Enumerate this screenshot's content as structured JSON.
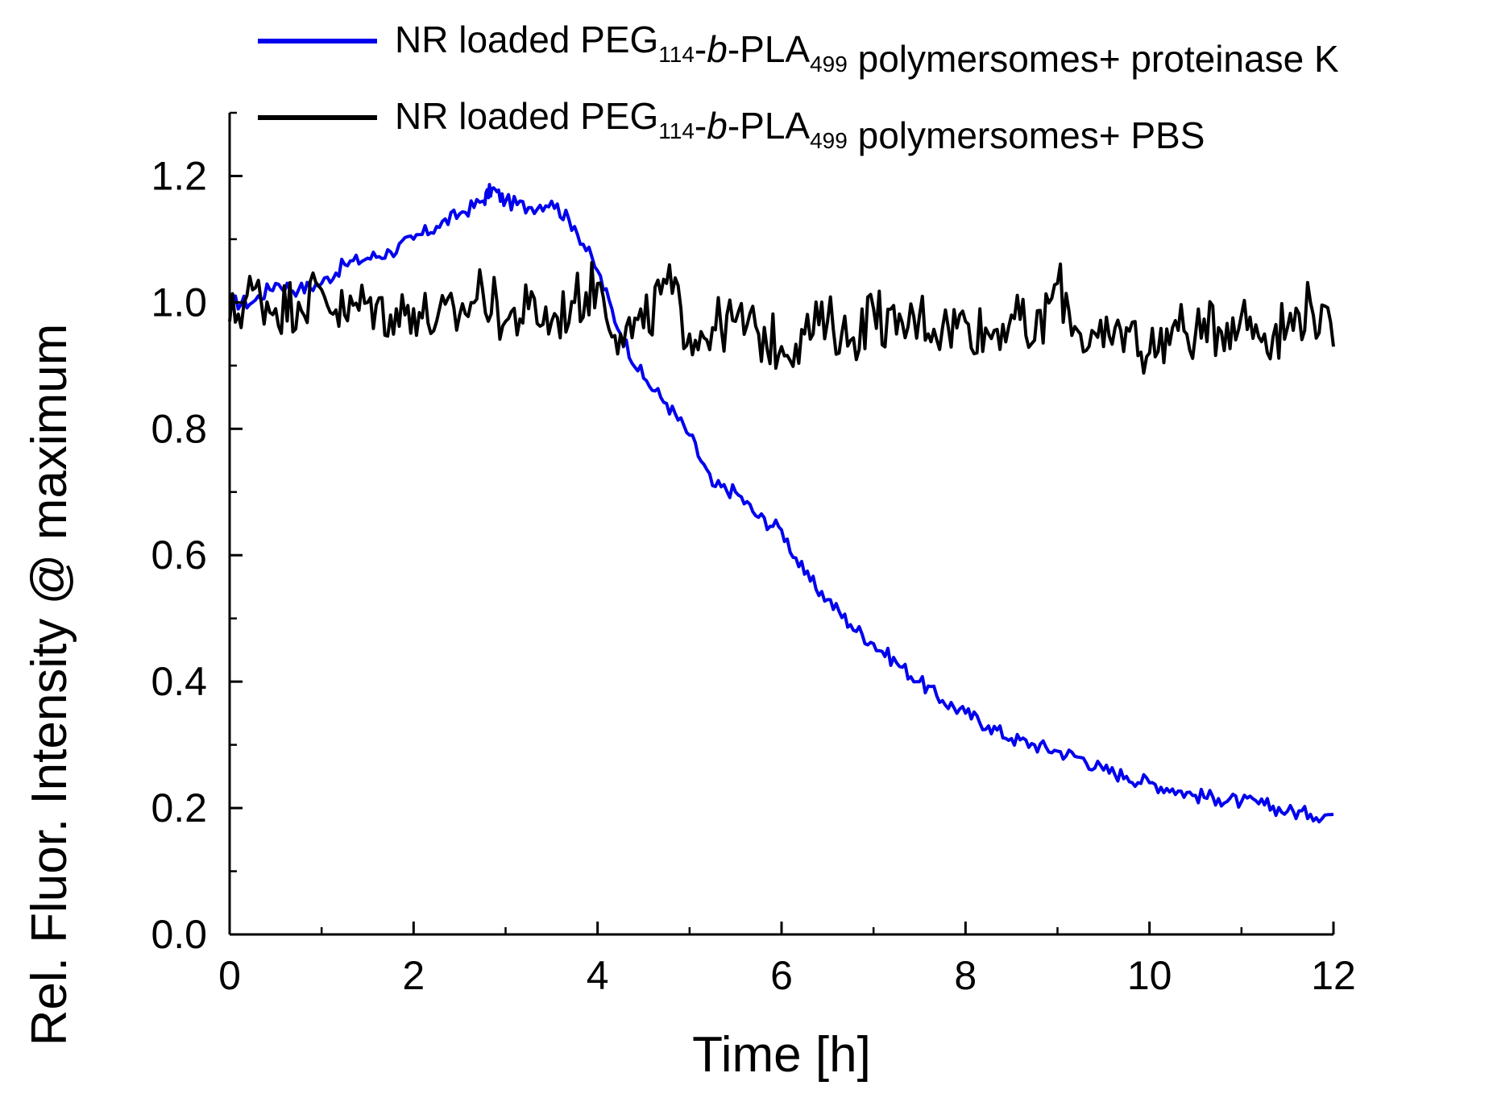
{
  "chart_data": {
    "type": "line",
    "xlabel": "Time [h]",
    "ylabel": "Rel. Fluor. Intensity @ maximum",
    "xlim": [
      0,
      12
    ],
    "ylim": [
      0,
      1.3
    ],
    "x_ticks": [
      0,
      2,
      4,
      6,
      8,
      10,
      12
    ],
    "x_tick_labels": [
      "0",
      "2",
      "4",
      "6",
      "8",
      "10",
      "12"
    ],
    "y_ticks": [
      0.0,
      0.2,
      0.4,
      0.6,
      0.8,
      1.0,
      1.2
    ],
    "y_tick_labels": [
      "0.0",
      "0.2",
      "0.4",
      "0.6",
      "0.8",
      "1.0",
      "1.2"
    ],
    "legend_position": "top",
    "series": [
      {
        "name": "NR loaded PEG114-b-PLA499 polymersomes+ proteinase K",
        "legend_parts": [
          "NR loaded PEG",
          "114",
          "-",
          "b",
          "-PLA",
          "499",
          " polymersomes+ proteinase K"
        ],
        "color": "#0000ee",
        "x": [
          0,
          0.25,
          0.5,
          0.75,
          1.0,
          1.25,
          1.5,
          1.75,
          2.0,
          2.25,
          2.5,
          2.75,
          2.85,
          3.0,
          3.25,
          3.5,
          3.75,
          4.0,
          4.25,
          4.5,
          4.75,
          5.0,
          5.25,
          5.5,
          5.75,
          6.0,
          6.25,
          6.5,
          6.75,
          7.0,
          7.25,
          7.5,
          7.75,
          8.0,
          8.25,
          8.5,
          8.75,
          9.0,
          9.25,
          9.5,
          9.75,
          10.0,
          10.25,
          10.5,
          10.75,
          11.0,
          11.25,
          11.5,
          11.75,
          12.0
        ],
        "y": [
          1.0,
          1.0,
          1.03,
          1.02,
          1.03,
          1.06,
          1.07,
          1.08,
          1.1,
          1.12,
          1.14,
          1.16,
          1.18,
          1.16,
          1.15,
          1.16,
          1.12,
          1.05,
          0.95,
          0.88,
          0.84,
          0.79,
          0.71,
          0.7,
          0.66,
          0.64,
          0.57,
          0.53,
          0.49,
          0.46,
          0.43,
          0.4,
          0.37,
          0.35,
          0.33,
          0.31,
          0.3,
          0.29,
          0.28,
          0.26,
          0.25,
          0.24,
          0.23,
          0.22,
          0.215,
          0.21,
          0.205,
          0.195,
          0.19,
          0.19
        ]
      },
      {
        "name": "NR loaded PEG114-b-PLA499 polymersomes+ PBS",
        "legend_parts": [
          "NR loaded PEG",
          "114",
          "-",
          "b",
          "-PLA",
          "499",
          " polymersomes+ PBS"
        ],
        "color": "#000000",
        "x": [
          0,
          0.25,
          0.5,
          0.75,
          1.0,
          1.25,
          1.5,
          1.75,
          2.0,
          2.25,
          2.5,
          2.75,
          3.0,
          3.25,
          3.5,
          3.75,
          4.0,
          4.25,
          4.5,
          4.75,
          5.0,
          5.25,
          5.5,
          5.75,
          6.0,
          6.25,
          6.5,
          6.75,
          7.0,
          7.25,
          7.5,
          7.75,
          8.0,
          8.25,
          8.5,
          8.75,
          9.0,
          9.25,
          9.5,
          9.75,
          10.0,
          10.25,
          10.5,
          10.75,
          11.0,
          11.25,
          11.5,
          11.75,
          12.0
        ],
        "y": [
          0.97,
          1.02,
          0.99,
          1.0,
          1.02,
          0.98,
          1.0,
          0.98,
          0.99,
          0.97,
          0.98,
          1.02,
          0.97,
          0.99,
          0.97,
          1.0,
          1.03,
          0.95,
          0.96,
          1.03,
          0.95,
          0.96,
          0.97,
          0.95,
          0.93,
          0.95,
          0.97,
          0.94,
          0.99,
          0.95,
          0.98,
          0.96,
          0.97,
          0.95,
          0.98,
          0.94,
          1.03,
          0.95,
          0.93,
          0.96,
          0.92,
          0.96,
          0.95,
          0.96,
          0.98,
          0.95,
          0.96,
          1.0,
          0.93
        ]
      }
    ]
  }
}
